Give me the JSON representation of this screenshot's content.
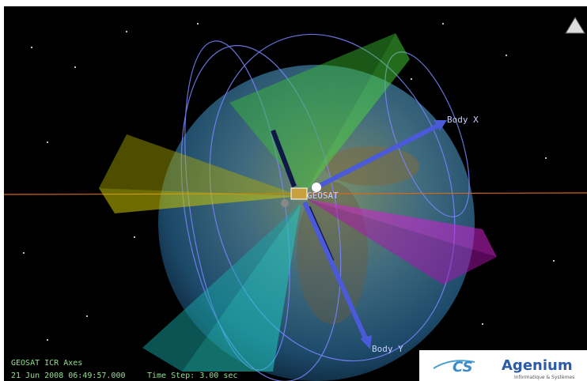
{
  "scene": {
    "satellite_label": "GEOSAT",
    "axis_labels": [
      "Body X",
      "Body Y"
    ]
  },
  "status": {
    "frame": "GEOSAT ICR Axes",
    "time": "21 Jun 2008 06:49:57.000",
    "time_step": "Time Step: 3.00 sec"
  },
  "logo": {
    "mark": "CS",
    "name": "Agenium",
    "tagline": "Informatique & Systèmes"
  }
}
